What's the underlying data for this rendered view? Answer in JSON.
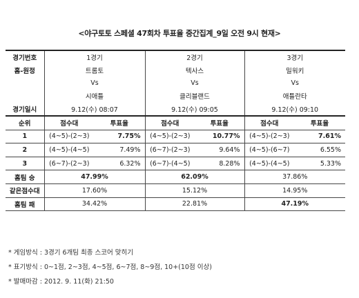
{
  "title": "<야구토토 스페셜 47회차 투표율 중간집계_9일 오전 9시 현재>",
  "labels": {
    "game_no": "경기번호",
    "home_away": "홈-원정",
    "game_date": "경기일시",
    "rank": "순위",
    "score_band": "점수대",
    "vote_rate": "투표율",
    "home_win": "홈팀 승",
    "same_band": "같은점수대",
    "home_loss": "홈팀 패"
  },
  "games": [
    {
      "no": "1경기",
      "home": "트롬토",
      "vs": "Vs",
      "away": "시애틀",
      "date": "9.12(수) 08:07",
      "ranks": [
        {
          "score": "(4~5)-(2~3)",
          "rate": "7.75%",
          "bold": true
        },
        {
          "score": "(4~5)-(4~5)",
          "rate": "7.49%",
          "bold": false
        },
        {
          "score": "(6~7)-(2~3)",
          "rate": "6.32%",
          "bold": false
        }
      ],
      "win": "47.99%",
      "same": "17.60%",
      "loss": "34.42%",
      "emph": "win"
    },
    {
      "no": "2경기",
      "home": "텍사스",
      "vs": "Vs",
      "away": "클리블랜드",
      "date": "9.12(수) 09:05",
      "ranks": [
        {
          "score": "(4~5)-(2~3)",
          "rate": "10.77%",
          "bold": true
        },
        {
          "score": "(6~7)-(2~3)",
          "rate": "9.64%",
          "bold": false
        },
        {
          "score": "(6~7)-(4~5)",
          "rate": "8.28%",
          "bold": false
        }
      ],
      "win": "62.09%",
      "same": "15.12%",
      "loss": "22.81%",
      "emph": "win"
    },
    {
      "no": "3경기",
      "home": "밀워키",
      "vs": "Vs",
      "away": "애틀란타",
      "date": "9.12(수) 09:10",
      "ranks": [
        {
          "score": "(4~5)-(2~3)",
          "rate": "7.61%",
          "bold": true
        },
        {
          "score": "(4~5)-(6~7)",
          "rate": "6.55%",
          "bold": false
        },
        {
          "score": "(4~5)-(4~5)",
          "rate": "5.33%",
          "bold": false
        }
      ],
      "win": "37.86%",
      "same": "14.95%",
      "loss": "47.19%",
      "emph": "loss"
    }
  ],
  "rank_numbers": [
    "1",
    "2",
    "3"
  ],
  "notes": [
    "* 게임방식 : 3경기 6개팀 최종 스코어 맞히기",
    "* 표기방식 : 0~1점, 2~3점, 4~5점, 6~7점, 8~9점, 10+(10점 이상)",
    "* 발매마감 : 2012. 9. 11(화) 21:50"
  ]
}
